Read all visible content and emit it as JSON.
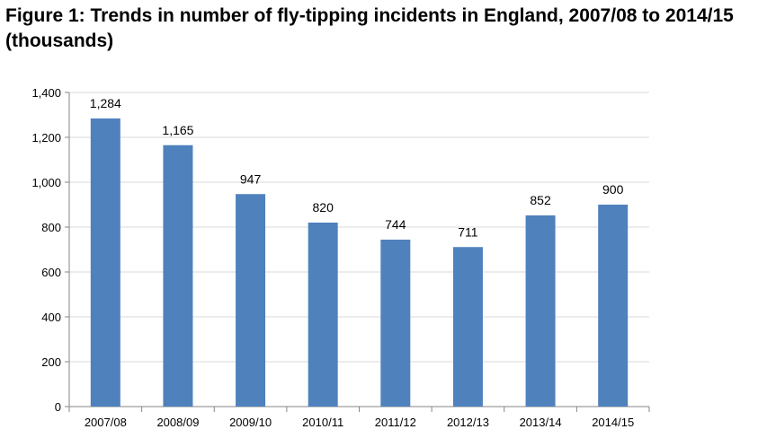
{
  "title": "Figure 1:  Trends in number of fly-tipping incidents in England, 2007/08 to 2014/15 (thousands)",
  "chart_data": {
    "type": "bar",
    "categories": [
      "2007/08",
      "2008/09",
      "2009/10",
      "2010/11",
      "2011/12",
      "2012/13",
      "2013/14",
      "2014/15"
    ],
    "values": [
      1284,
      1165,
      947,
      820,
      744,
      711,
      852,
      900
    ],
    "data_labels": [
      "1,284",
      "1,165",
      "947",
      "820",
      "744",
      "711",
      "852",
      "900"
    ],
    "y_ticks": [
      "0",
      "200",
      "400",
      "600",
      "800",
      "1,000",
      "1,200",
      "1,400"
    ],
    "y_tick_values": [
      0,
      200,
      400,
      600,
      800,
      1000,
      1200,
      1400
    ],
    "ylim": [
      0,
      1400
    ],
    "grid": true,
    "legend": "none",
    "bar_color": "#4f81bd",
    "grid_color": "#d9d9d9",
    "axis_color": "#868686"
  }
}
